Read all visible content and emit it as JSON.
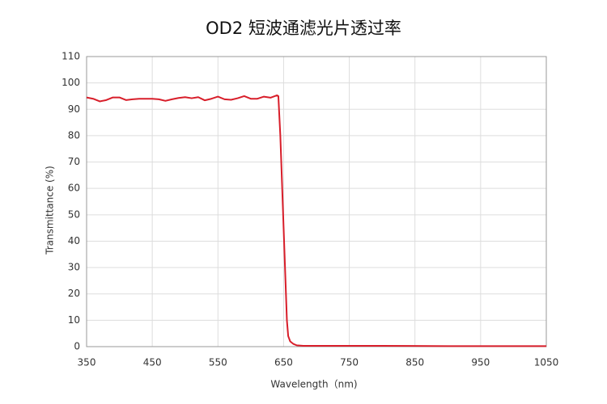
{
  "chart_data": {
    "type": "line",
    "title": "OD2 短波通滤光片透过率",
    "x_label": "Wavelength（nm)",
    "y_label": "Transmittance (%)",
    "series": [
      {
        "name": "Transmittance",
        "color": "#d81e2a",
        "x": [
          350,
          360,
          370,
          380,
          390,
          400,
          410,
          420,
          430,
          440,
          450,
          460,
          470,
          480,
          490,
          500,
          510,
          520,
          530,
          540,
          550,
          560,
          570,
          580,
          590,
          600,
          610,
          620,
          630,
          640,
          642,
          645,
          650,
          655,
          657,
          660,
          665,
          670,
          680,
          700,
          800,
          900,
          1050
        ],
        "values": [
          94.5,
          94,
          93,
          93.5,
          94.5,
          94.5,
          93.5,
          93.8,
          94,
          94,
          94,
          93.8,
          93.2,
          93.8,
          94.3,
          94.6,
          94.2,
          94.6,
          93.4,
          94,
          94.8,
          93.8,
          93.6,
          94.2,
          95,
          94,
          94,
          94.8,
          94.4,
          95.3,
          95,
          80,
          45,
          10,
          4,
          2,
          1,
          0.5,
          0.3,
          0.3,
          0.3,
          0.2,
          0.2
        ]
      }
    ],
    "xlim": [
      350,
      1050
    ],
    "xticks": [
      350,
      450,
      550,
      650,
      750,
      850,
      950,
      1050
    ],
    "ylim": [
      0,
      110
    ],
    "yticks": [
      0,
      10,
      20,
      30,
      40,
      50,
      60,
      70,
      80,
      90,
      100,
      110
    ],
    "grid": true
  }
}
